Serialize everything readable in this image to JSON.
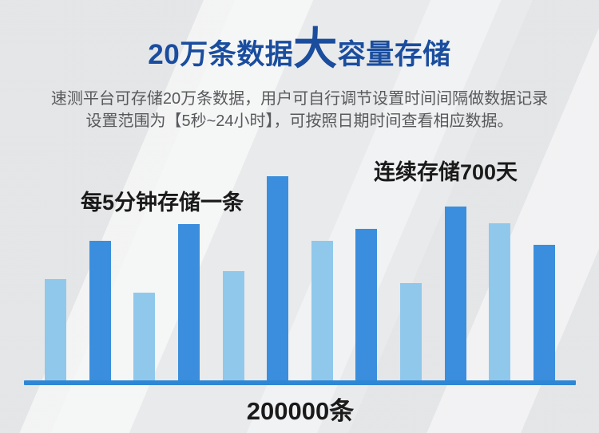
{
  "header": {
    "title_prefix": "20万条数据",
    "title_big": "大",
    "title_suffix": "容量存储",
    "title_color": "#1a4d9e",
    "subtitle_line1": "速测平台可存储20万条数据，用户可自行调节设置时间间隔做数据记录",
    "subtitle_line2": "设置范围为【5秒~24小时】，可按照日期时间查看相应数据。",
    "subtitle_color": "#58595b"
  },
  "chart": {
    "annotation_left": "每5分钟存储一条",
    "annotation_right": "连续存储700天",
    "axis_label": "200000条",
    "bar_color_light": "#90c8ec",
    "bar_color_dark": "#3b8edd",
    "axis_color": "#2e87d5",
    "annotation_text_color": "#1a1a1a"
  },
  "chart_data": {
    "type": "bar",
    "title": "20万条数据大容量存储",
    "xlabel": "200000条",
    "ylabel": "",
    "values": [
      128,
      176,
      111,
      197,
      138,
      257,
      176,
      191,
      123,
      219,
      198,
      171
    ],
    "value_unit": "relative bar height in px (decorative chart, no numeric axis shown)",
    "tones": [
      "light",
      "dark",
      "light",
      "dark",
      "light",
      "dark",
      "light",
      "dark",
      "light",
      "dark",
      "light",
      "dark"
    ],
    "bar_count": 12,
    "grid": "off",
    "legend": "none",
    "annotations": [
      {
        "text": "每5分钟存储一条",
        "position": "above bars 2-5, left side"
      },
      {
        "text": "连续存储700天",
        "position": "above bars 8-11, right side"
      }
    ]
  }
}
